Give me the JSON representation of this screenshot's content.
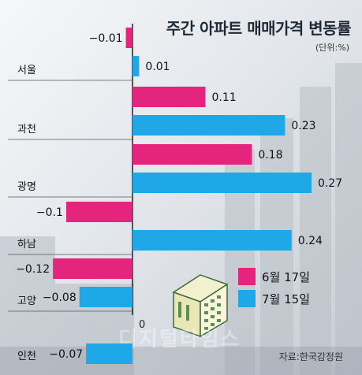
{
  "header": {
    "title": "주간 아파트 매매가격 변동률",
    "unit": "(단위:%)"
  },
  "source": "자료:한국감정원",
  "watermark": "디지털타임스",
  "colors": {
    "series1": "#e5247e",
    "series2": "#1fa8e8",
    "axis": "#222222"
  },
  "chart_data": {
    "type": "bar",
    "orientation": "horizontal",
    "title": "주간 아파트 매매가격 변동률",
    "unit": "(단위:%)",
    "categories": [
      "서울",
      "과천",
      "광명",
      "하남",
      "고양",
      "인천"
    ],
    "series": [
      {
        "name": "6월 17일",
        "values": [
          -0.01,
          0.11,
          0.18,
          -0.1,
          -0.12,
          null
        ]
      },
      {
        "name": "7월 15일",
        "values": [
          0.01,
          0.23,
          0.27,
          0.24,
          -0.08,
          -0.07
        ]
      }
    ],
    "value_labels": [
      [
        "−0.01",
        "0.11",
        "0.18",
        "−0.1",
        "−0.12",
        ""
      ],
      [
        "0.01",
        "0.23",
        "0.27",
        "0.24",
        "−0.08",
        "−0.07"
      ]
    ],
    "zero_label": "0",
    "xlabel": "",
    "ylabel": "",
    "legend_position": "bottom-right"
  }
}
